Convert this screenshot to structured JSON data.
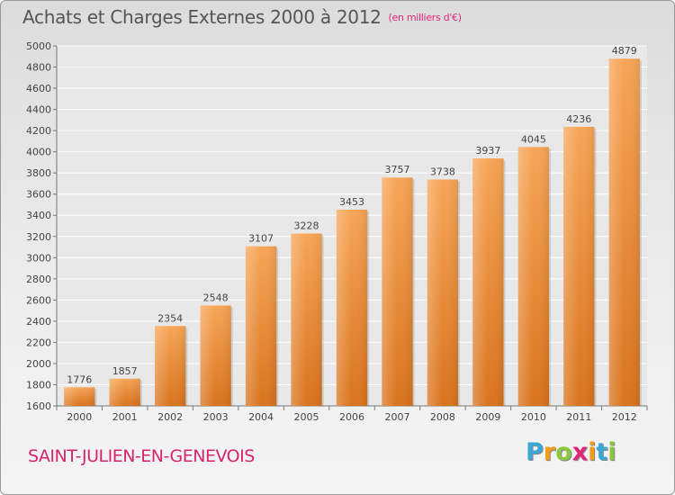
{
  "header": {
    "title": "Achats et Charges Externes 2000 à 2012",
    "unit": "(en milliers d'€)"
  },
  "footer": {
    "city": "SAINT-JULIEN-EN-GENEVOIS",
    "logo": {
      "letters": [
        "P",
        "r",
        "o",
        "x",
        "i",
        "t",
        "i"
      ],
      "colors": [
        "#3aa7d6",
        "#f39c1b",
        "#8cc63f",
        "#e0257b",
        "#f39c1b",
        "#3aa7d6",
        "#8cc63f"
      ]
    }
  },
  "chart_data": {
    "type": "bar",
    "categories": [
      "2000",
      "2001",
      "2002",
      "2003",
      "2004",
      "2005",
      "2006",
      "2007",
      "2008",
      "2009",
      "2010",
      "2011",
      "2012"
    ],
    "values": [
      1776,
      1857,
      2354,
      2548,
      3107,
      3228,
      3453,
      3757,
      3738,
      3937,
      4045,
      4236,
      4879
    ],
    "ylim": [
      1600,
      5000
    ],
    "ytick_step": 200,
    "grid": true,
    "bar_color": "#f08a2e",
    "xlabel": "",
    "ylabel": ""
  }
}
